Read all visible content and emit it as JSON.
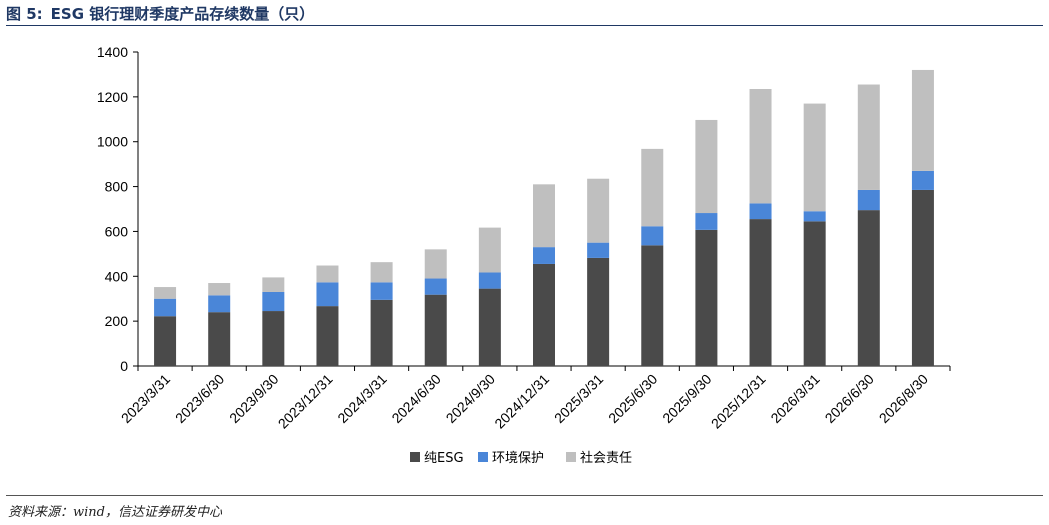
{
  "header": {
    "figure_label": "图 5:",
    "figure_title": "ESG 银行理财季度产品存续数量（只）"
  },
  "footer": {
    "source": "资料来源：wind，信达证券研发中心"
  },
  "chart_data": {
    "type": "bar",
    "stacked": true,
    "categories": [
      "2023/3/31",
      "2023/6/30",
      "2023/9/30",
      "2023/12/31",
      "2024/3/31",
      "2024/6/30",
      "2024/9/30",
      "2024/12/31",
      "2025/3/31",
      "2025/6/30",
      "2025/9/30",
      "2025/12/31",
      "2026/3/31",
      "2026/6/30",
      "2026/8/30"
    ],
    "series": [
      {
        "name": "纯ESG",
        "color": "#4a4a4a",
        "values": [
          222,
          240,
          245,
          267,
          295,
          318,
          345,
          455,
          482,
          538,
          607,
          655,
          645,
          695,
          785
        ]
      },
      {
        "name": "环境保护",
        "color": "#4a86d8",
        "values": [
          78,
          75,
          85,
          106,
          78,
          72,
          72,
          75,
          68,
          85,
          75,
          70,
          45,
          90,
          85
        ]
      },
      {
        "name": "社会责任",
        "color": "#bfbfbf",
        "values": [
          52,
          55,
          65,
          75,
          90,
          130,
          200,
          280,
          285,
          345,
          415,
          510,
          480,
          470,
          450
        ]
      }
    ],
    "ylim": [
      0,
      1400
    ],
    "yticks": [
      0,
      200,
      400,
      600,
      800,
      1000,
      1200,
      1400
    ],
    "grid": false,
    "legend_position": "bottom",
    "title": "",
    "xlabel": "",
    "ylabel": ""
  }
}
